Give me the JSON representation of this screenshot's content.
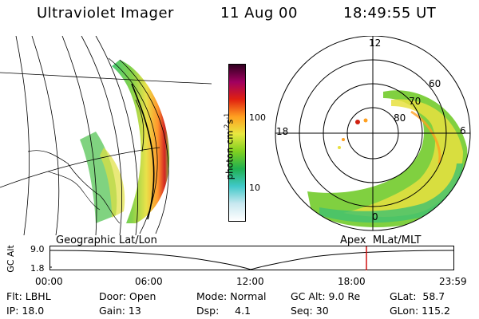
{
  "header": {
    "instrument": "Ultraviolet Imager",
    "date": "11 Aug 00",
    "time": "18:49:55 UT"
  },
  "colorbar": {
    "unit_base": "photon cm",
    "unit_exp1": "-2",
    "unit_mid": "s",
    "unit_exp2": "-1",
    "ticks": [
      "100",
      "10"
    ],
    "gradient": [
      "#ffffff",
      "#c8e8f0",
      "#40c8c8",
      "#20b050",
      "#80d020",
      "#e8e840",
      "#ffa020",
      "#e02010",
      "#a00060",
      "#300020"
    ]
  },
  "geo_panel": {
    "label": "Geographic Lat/Lon"
  },
  "polar_panel": {
    "label": "Apex  MLat/MLT",
    "mlt_labels": {
      "top": "12",
      "left": "18",
      "right": "6",
      "bottom": "0"
    },
    "lat_labels": [
      "60",
      "70",
      "80"
    ]
  },
  "altitude_plot": {
    "ylabel": "GC Alt",
    "y_ticks": [
      "9.0",
      "1.8"
    ],
    "x_ticks": [
      "00:00",
      "06:00",
      "12:00",
      "18:00",
      "23:59"
    ],
    "marker_color": "#d01010"
  },
  "info": {
    "flt_label": "Flt: LBHL",
    "ip_label": "IP: 18.0",
    "door_label": "Door: Open",
    "gain_label": "Gain: 13",
    "mode_label": "Mode: Normal",
    "dsp_label": "Dsp:     4.1",
    "gcalt_label": "GC Alt: 9.0 Re",
    "seq_label": "Seq: 30",
    "glat_label": "GLat:  58.7",
    "glon_label": "GLon: 115.2"
  }
}
